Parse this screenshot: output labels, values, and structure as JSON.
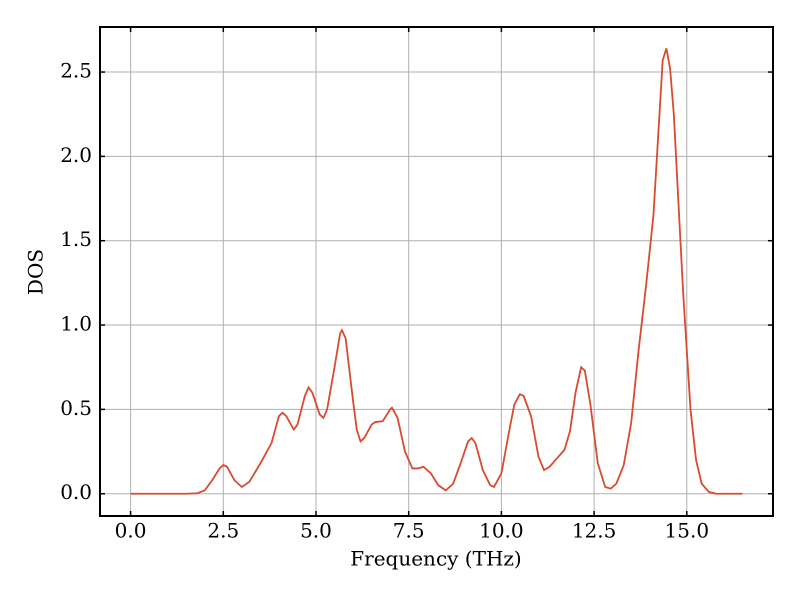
{
  "chart_data": {
    "type": "line",
    "x_label": "Frequency (THz)",
    "y_label": "DOS",
    "x": [
      0,
      0.5,
      1.0,
      1.5,
      1.8,
      2.0,
      2.2,
      2.4,
      2.5,
      2.6,
      2.8,
      3.0,
      3.2,
      3.5,
      3.8,
      4.0,
      4.1,
      4.2,
      4.4,
      4.5,
      4.7,
      4.8,
      4.9,
      5.1,
      5.2,
      5.3,
      5.5,
      5.65,
      5.7,
      5.8,
      6.0,
      6.1,
      6.2,
      6.3,
      6.5,
      6.6,
      6.8,
      7.0,
      7.05,
      7.2,
      7.4,
      7.6,
      7.75,
      7.9,
      8.1,
      8.3,
      8.5,
      8.7,
      8.9,
      9.1,
      9.2,
      9.3,
      9.5,
      9.7,
      9.8,
      10.0,
      10.2,
      10.35,
      10.5,
      10.6,
      10.8,
      11.0,
      11.15,
      11.3,
      11.5,
      11.7,
      11.85,
      12.0,
      12.15,
      12.25,
      12.4,
      12.6,
      12.8,
      12.95,
      13.1,
      13.3,
      13.5,
      13.7,
      13.9,
      14.1,
      14.25,
      14.35,
      14.45,
      14.55,
      14.65,
      14.9,
      15.1,
      15.25,
      15.4,
      15.6,
      15.8,
      16.0,
      16.5
    ],
    "series": [
      {
        "color": "#d94a2f",
        "values": [
          0,
          0,
          0,
          0,
          0.003,
          0.02,
          0.08,
          0.15,
          0.17,
          0.16,
          0.08,
          0.04,
          0.07,
          0.18,
          0.3,
          0.46,
          0.48,
          0.46,
          0.38,
          0.41,
          0.58,
          0.63,
          0.6,
          0.47,
          0.45,
          0.5,
          0.75,
          0.95,
          0.97,
          0.92,
          0.55,
          0.38,
          0.31,
          0.33,
          0.41,
          0.425,
          0.43,
          0.5,
          0.51,
          0.45,
          0.25,
          0.15,
          0.15,
          0.16,
          0.12,
          0.05,
          0.02,
          0.06,
          0.18,
          0.31,
          0.33,
          0.3,
          0.14,
          0.05,
          0.04,
          0.12,
          0.36,
          0.53,
          0.59,
          0.58,
          0.46,
          0.22,
          0.14,
          0.16,
          0.21,
          0.26,
          0.37,
          0.6,
          0.75,
          0.73,
          0.53,
          0.18,
          0.04,
          0.03,
          0.06,
          0.17,
          0.42,
          0.85,
          1.23,
          1.65,
          2.2,
          2.57,
          2.64,
          2.52,
          2.25,
          1.2,
          0.5,
          0.2,
          0.06,
          0.01,
          0,
          0,
          0
        ]
      }
    ],
    "xlim": [
      -0.825,
      17.325
    ],
    "ylim": [
      -0.132,
      2.767
    ],
    "xticks": [
      {
        "value": 0,
        "label": "0.0"
      },
      2.5,
      {
        "value": 5,
        "label": "5.0"
      },
      7.5,
      {
        "value": 10,
        "label": "10.0"
      },
      12.5,
      {
        "value": 15,
        "label": "15.0"
      }
    ],
    "yticks": [
      {
        "value": 0,
        "label": "0.0"
      },
      0.5,
      {
        "value": 1,
        "label": "1.0"
      },
      1.5,
      {
        "value": 2,
        "label": "2.0"
      },
      2.5
    ],
    "grid": true
  }
}
